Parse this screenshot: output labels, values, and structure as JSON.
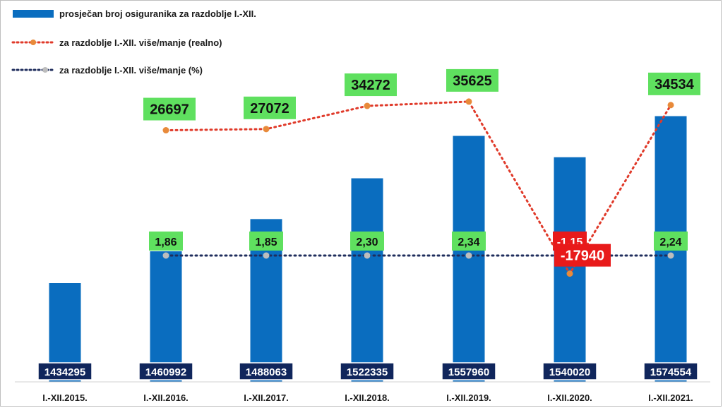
{
  "chart_data": {
    "type": "bar",
    "categories": [
      "I.-XII.2015.",
      "I.-XII.2016.",
      "I.-XII.2017.",
      "I.-XII.2018.",
      "I.-XII.2019.",
      "I.-XII.2020.",
      "I.-XII.2021."
    ],
    "series": [
      {
        "name": "prosječan broj osiguranika za razdoblje I.-XII.",
        "type": "bar",
        "values": [
          1434295,
          1460992,
          1488063,
          1522335,
          1557960,
          1540020,
          1574554
        ],
        "labels": [
          "1434295",
          "1460992",
          "1488063",
          "1522335",
          "1557960",
          "1540020",
          "1574554"
        ]
      },
      {
        "name": "za razdoblje I.-XII. više/manje (realno)",
        "type": "line",
        "values": [
          null,
          26697,
          27072,
          34272,
          35625,
          -17940,
          34534
        ],
        "labels": [
          "",
          "26697",
          "27072",
          "34272",
          "35625",
          "-17940",
          "34534"
        ]
      },
      {
        "name": "za razdoblje I.-XII. više/manje (%)",
        "type": "line",
        "values": [
          null,
          1.86,
          1.85,
          2.3,
          2.34,
          -1.15,
          2.24
        ],
        "labels": [
          "",
          "1,86",
          "1,85",
          "2,30",
          "2,34",
          "-1,15",
          "2,24"
        ]
      }
    ],
    "legend_position": "top-left",
    "grid": false
  },
  "colors": {
    "bar": "#0a6dbf",
    "real_line": "#e03a2a",
    "real_marker": "#e88a3a",
    "pct_line": "#1f2d5c",
    "pct_marker": "#bdbdbd",
    "label_positive_bg": "#5fe05f",
    "label_negative_bg": "#e81a1a",
    "value_box_bg": "#10265c"
  }
}
